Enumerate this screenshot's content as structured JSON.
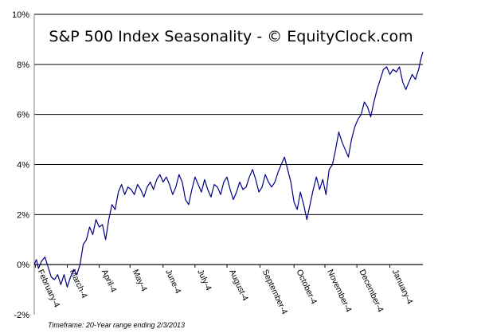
{
  "chart_data": {
    "type": "line",
    "title": "S&P 500 Index Seasonality - © EquityClock.com",
    "footnote": "Timeframe: 20-Year range ending 2/3/2013",
    "xlabel": "",
    "ylabel": "",
    "ylim": [
      -2,
      10
    ],
    "y_ticks": [
      "10%",
      "8%",
      "6%",
      "4%",
      "2%",
      "0%",
      "-2%"
    ],
    "y_tick_values": [
      10,
      8,
      6,
      4,
      2,
      0,
      -2
    ],
    "x_ticks": [
      "February-4",
      "March-4",
      "April-4",
      "May-4",
      "June-4",
      "July-4",
      "August-4",
      "September-4",
      "October-4",
      "November-4",
      "December-4",
      "January-4"
    ],
    "x_tick_positions": [
      1,
      31,
      61,
      90,
      121,
      151,
      181,
      212,
      244,
      273,
      303,
      334
    ],
    "xlim": [
      0,
      365
    ],
    "grid": true,
    "colors": {
      "line": "#000080",
      "grid": "#000000",
      "axis": "#808080"
    },
    "series": [
      {
        "values": [
          [
            0,
            0.0
          ],
          [
            2,
            0.2
          ],
          [
            4,
            -0.15
          ],
          [
            7,
            0.15
          ],
          [
            10,
            0.3
          ],
          [
            13,
            -0.1
          ],
          [
            16,
            -0.5
          ],
          [
            19,
            -0.6
          ],
          [
            22,
            -0.4
          ],
          [
            25,
            -0.8
          ],
          [
            28,
            -0.4
          ],
          [
            31,
            -0.9
          ],
          [
            34,
            -0.5
          ],
          [
            37,
            -0.2
          ],
          [
            40,
            -0.4
          ],
          [
            43,
            0.0
          ],
          [
            46,
            0.8
          ],
          [
            49,
            1.0
          ],
          [
            52,
            1.5
          ],
          [
            55,
            1.2
          ],
          [
            58,
            1.8
          ],
          [
            61,
            1.5
          ],
          [
            64,
            1.6
          ],
          [
            67,
            1.0
          ],
          [
            70,
            1.8
          ],
          [
            73,
            2.4
          ],
          [
            76,
            2.2
          ],
          [
            79,
            2.9
          ],
          [
            82,
            3.2
          ],
          [
            85,
            2.8
          ],
          [
            88,
            3.1
          ],
          [
            91,
            3.0
          ],
          [
            94,
            2.8
          ],
          [
            97,
            3.2
          ],
          [
            100,
            3.0
          ],
          [
            103,
            2.7
          ],
          [
            106,
            3.1
          ],
          [
            109,
            3.3
          ],
          [
            112,
            3.0
          ],
          [
            115,
            3.4
          ],
          [
            118,
            3.6
          ],
          [
            121,
            3.3
          ],
          [
            124,
            3.5
          ],
          [
            127,
            3.2
          ],
          [
            130,
            2.8
          ],
          [
            133,
            3.1
          ],
          [
            136,
            3.6
          ],
          [
            139,
            3.3
          ],
          [
            142,
            2.6
          ],
          [
            145,
            2.4
          ],
          [
            148,
            3.0
          ],
          [
            151,
            3.5
          ],
          [
            154,
            3.2
          ],
          [
            157,
            2.9
          ],
          [
            160,
            3.4
          ],
          [
            163,
            3.0
          ],
          [
            166,
            2.7
          ],
          [
            169,
            3.2
          ],
          [
            172,
            3.1
          ],
          [
            175,
            2.8
          ],
          [
            178,
            3.3
          ],
          [
            181,
            3.5
          ],
          [
            184,
            3.0
          ],
          [
            187,
            2.6
          ],
          [
            190,
            2.9
          ],
          [
            193,
            3.3
          ],
          [
            196,
            3.0
          ],
          [
            199,
            3.1
          ],
          [
            202,
            3.5
          ],
          [
            205,
            3.8
          ],
          [
            208,
            3.4
          ],
          [
            211,
            2.9
          ],
          [
            214,
            3.1
          ],
          [
            217,
            3.6
          ],
          [
            220,
            3.3
          ],
          [
            223,
            3.1
          ],
          [
            226,
            3.3
          ],
          [
            229,
            3.7
          ],
          [
            232,
            4.0
          ],
          [
            235,
            4.3
          ],
          [
            238,
            3.8
          ],
          [
            241,
            3.3
          ],
          [
            244,
            2.5
          ],
          [
            247,
            2.2
          ],
          [
            250,
            2.9
          ],
          [
            253,
            2.4
          ],
          [
            256,
            1.8
          ],
          [
            259,
            2.4
          ],
          [
            262,
            3.0
          ],
          [
            265,
            3.5
          ],
          [
            268,
            3.0
          ],
          [
            271,
            3.4
          ],
          [
            274,
            2.8
          ],
          [
            277,
            3.8
          ],
          [
            280,
            4.0
          ],
          [
            283,
            4.6
          ],
          [
            286,
            5.3
          ],
          [
            289,
            4.9
          ],
          [
            292,
            4.6
          ],
          [
            295,
            4.3
          ],
          [
            298,
            5.0
          ],
          [
            301,
            5.5
          ],
          [
            304,
            5.8
          ],
          [
            307,
            6.0
          ],
          [
            310,
            6.5
          ],
          [
            313,
            6.3
          ],
          [
            316,
            5.9
          ],
          [
            319,
            6.5
          ],
          [
            322,
            7.0
          ],
          [
            325,
            7.4
          ],
          [
            328,
            7.8
          ],
          [
            331,
            7.9
          ],
          [
            334,
            7.6
          ],
          [
            337,
            7.8
          ],
          [
            340,
            7.7
          ],
          [
            343,
            7.9
          ],
          [
            346,
            7.3
          ],
          [
            349,
            7.0
          ],
          [
            352,
            7.3
          ],
          [
            355,
            7.6
          ],
          [
            358,
            7.4
          ],
          [
            361,
            7.8
          ],
          [
            363,
            8.2
          ],
          [
            365,
            8.5
          ]
        ]
      }
    ]
  }
}
